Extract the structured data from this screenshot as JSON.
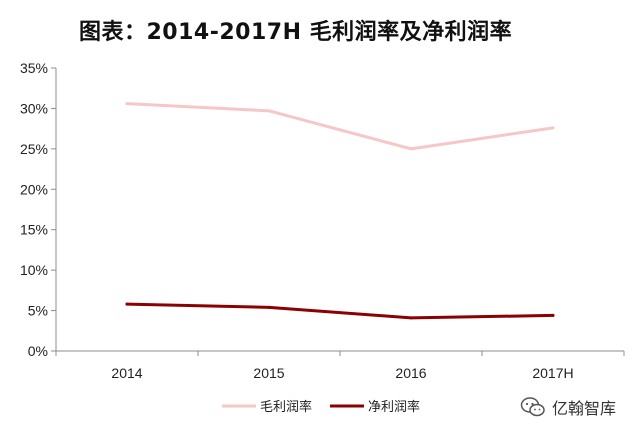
{
  "title": "图表：2014-2017H 毛利润率及净利润率",
  "watermark": "亿翰智库",
  "chart_data": {
    "type": "line",
    "title": "图表：2014-2017H 毛利润率及净利润率",
    "categories": [
      "2014",
      "2015",
      "2016",
      "2017H"
    ],
    "series": [
      {
        "name": "毛利润率",
        "values": [
          30.6,
          29.7,
          25.0,
          27.6
        ],
        "color": "#f7c6c6"
      },
      {
        "name": "净利润率",
        "values": [
          5.8,
          5.4,
          4.1,
          4.4
        ],
        "color": "#8b0000"
      }
    ],
    "yticks": [
      "0%",
      "5%",
      "10%",
      "15%",
      "20%",
      "25%",
      "30%",
      "35%"
    ],
    "ylim": [
      0,
      35
    ],
    "ylabel": "",
    "xlabel": "",
    "grid": false,
    "legend": "bottom-center"
  }
}
